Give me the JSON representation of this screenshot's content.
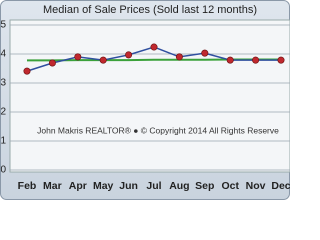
{
  "chart_data": {
    "type": "line",
    "title": "Median of Sale Prices (Sold last 12 months)",
    "watermark": "John Makris REALTOR® ● © Copyright 2014 All Rights Reserve",
    "categories": [
      "Feb",
      "Mar",
      "Apr",
      "May",
      "Jun",
      "Jul",
      "Aug",
      "Sep",
      "Oct",
      "Nov",
      "Dec"
    ],
    "series": [
      {
        "color": "#2f4f9f",
        "marker_color": "#c0282e",
        "values": [
          3.41,
          3.69,
          3.9,
          3.79,
          3.97,
          4.24,
          3.9,
          4.03,
          3.79,
          3.79,
          3.79
        ]
      },
      {
        "color": "#3aa13a",
        "values": [
          3.78,
          3.78,
          3.79,
          3.79,
          3.79,
          3.8,
          3.8,
          3.8,
          3.81,
          3.81,
          3.81
        ]
      }
    ],
    "ylim": [
      0,
      5
    ],
    "yticks": [
      0,
      1,
      2,
      3,
      4,
      5
    ],
    "grid": true
  }
}
